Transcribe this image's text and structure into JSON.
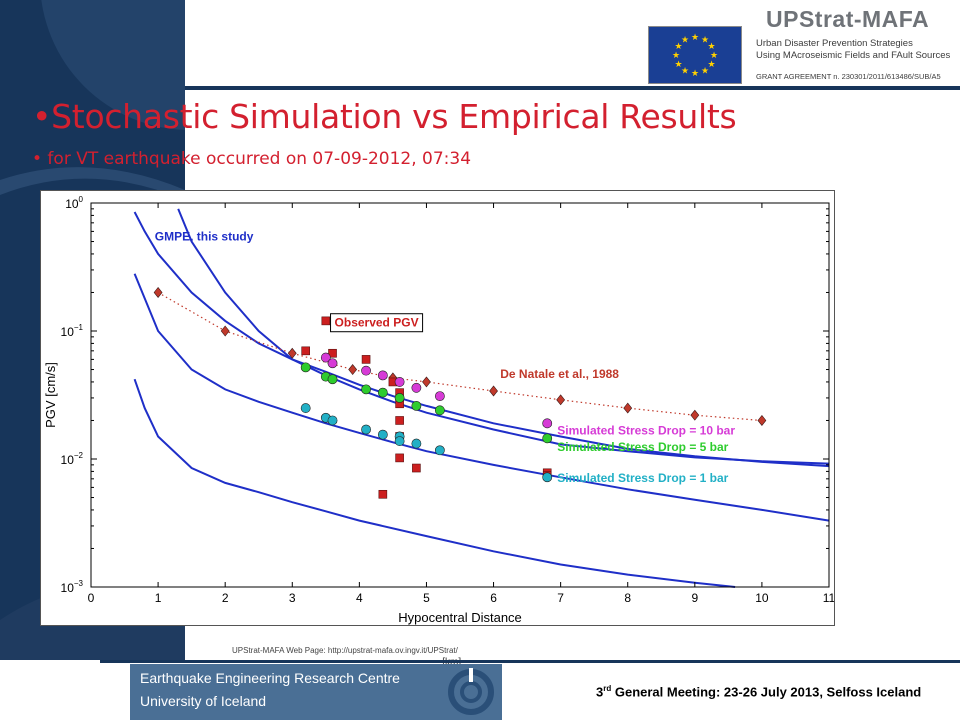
{
  "header": {
    "brand_title": "UPStrat-MAFA",
    "brand_line1": "Urban Disaster Prevention Strategies",
    "brand_line2": "Using MAcroseismic Fields and FAult Sources",
    "grant": "GRANT AGREEMENT n. 230301/2011/613486/SUB/A5"
  },
  "slide": {
    "title": "•Stochastic Simulation vs Empirical Results",
    "subtitle": "• for VT earthquake occurred on 07-09-2012, 07:34"
  },
  "footer": {
    "web": "UPStrat-MAFA Web Page: http://upstrat-mafa.ov.ingv.it/UPStrat/",
    "note": "• [km]",
    "centre": "Earthquake Engineering Research Centre",
    "university": "University of Iceland",
    "meeting_ordinal": "3",
    "meeting_sup": "rd",
    "meeting_rest": " General Meeting: 23-26 July 2013, Selfoss Iceland"
  },
  "colors": {
    "title_red": "#d3202f",
    "navy": "#17355a",
    "gmpe_blue": "#1f2fc8",
    "de_natale": "#c0392b",
    "observed": "#cc1f1f",
    "sim10": "#d63bd6",
    "sim5": "#2ecc2e",
    "sim1": "#22b0c6"
  },
  "chart_data": {
    "type": "scatter",
    "xlabel": "Hypocentral Distance",
    "ylabel": "PGV [cm/s]",
    "xlim": [
      0,
      11
    ],
    "ylim": [
      0.001,
      1
    ],
    "yscale": "log",
    "grid": false,
    "x_ticks": [
      "0",
      "1",
      "2",
      "3",
      "4",
      "5",
      "6",
      "7",
      "8",
      "9",
      "10",
      "11"
    ],
    "y_ticks": [
      {
        "value": 1,
        "base": "10",
        "exp": "0"
      },
      {
        "value": 0.1,
        "base": "10",
        "exp": "−1"
      },
      {
        "value": 0.01,
        "base": "10",
        "exp": "−2"
      },
      {
        "value": 0.001,
        "base": "10",
        "exp": "−3"
      }
    ],
    "annotations": {
      "gmpe": "GMPE, this study",
      "observed": "Observed PGV",
      "de_natale": "De Natale et al., 1988",
      "sim10": "Simulated Stress Drop = 10 bar",
      "sim5": "Simulated Stress Drop = 5 bar",
      "sim1": "Simulated Stress Drop = 1 bar"
    },
    "gmpe_curves": [
      {
        "points": [
          [
            0.65,
            0.85
          ],
          [
            0.8,
            0.6
          ],
          [
            1,
            0.4
          ],
          [
            1.5,
            0.2
          ],
          [
            2,
            0.12
          ],
          [
            2.5,
            0.08
          ],
          [
            3,
            0.06
          ],
          [
            3.5,
            0.048
          ],
          [
            4,
            0.038
          ],
          [
            4.5,
            0.031
          ],
          [
            5,
            0.026
          ],
          [
            6,
            0.019
          ],
          [
            7,
            0.015
          ],
          [
            8,
            0.012
          ],
          [
            9,
            0.0105
          ],
          [
            10,
            0.0095
          ],
          [
            11,
            0.0088
          ]
        ]
      },
      {
        "points": [
          [
            1.3,
            0.9
          ],
          [
            1.5,
            0.5
          ],
          [
            2,
            0.2
          ],
          [
            2.5,
            0.1
          ],
          [
            3,
            0.06
          ],
          [
            3.5,
            0.045
          ],
          [
            4,
            0.035
          ],
          [
            4.5,
            0.028
          ],
          [
            5,
            0.023
          ],
          [
            6,
            0.017
          ],
          [
            7,
            0.013
          ],
          [
            8,
            0.0115
          ],
          [
            9,
            0.0103
          ],
          [
            10,
            0.0096
          ],
          [
            11,
            0.0092
          ]
        ]
      },
      {
        "points": [
          [
            0.65,
            0.28
          ],
          [
            1,
            0.1
          ],
          [
            1.5,
            0.05
          ],
          [
            2,
            0.035
          ],
          [
            2.5,
            0.028
          ],
          [
            3,
            0.023
          ],
          [
            3.5,
            0.019
          ],
          [
            4,
            0.016
          ],
          [
            4.5,
            0.0135
          ],
          [
            5,
            0.0115
          ],
          [
            6,
            0.009
          ],
          [
            7,
            0.0072
          ],
          [
            8,
            0.0058
          ],
          [
            9,
            0.0048
          ],
          [
            10,
            0.004
          ],
          [
            11,
            0.0033
          ]
        ]
      },
      {
        "points": [
          [
            0.65,
            0.042
          ],
          [
            0.8,
            0.025
          ],
          [
            1,
            0.015
          ],
          [
            1.5,
            0.0085
          ],
          [
            2,
            0.0065
          ],
          [
            2.5,
            0.0055
          ],
          [
            3,
            0.0046
          ],
          [
            3.5,
            0.0039
          ],
          [
            4,
            0.0033
          ],
          [
            5,
            0.0025
          ],
          [
            6,
            0.0019
          ],
          [
            7,
            0.0015
          ],
          [
            8,
            0.00125
          ],
          [
            9,
            0.00108
          ],
          [
            9.6,
            0.001
          ]
        ]
      }
    ],
    "series": [
      {
        "name": "De Natale et al., 1988",
        "marker": "diamond",
        "line": "dotted",
        "points": [
          [
            1,
            0.2
          ],
          [
            2,
            0.1
          ],
          [
            3,
            0.067
          ],
          [
            3.9,
            0.05
          ],
          [
            4.5,
            0.043
          ],
          [
            5,
            0.04
          ],
          [
            6,
            0.034
          ],
          [
            7,
            0.029
          ],
          [
            8,
            0.025
          ],
          [
            9,
            0.022
          ],
          [
            10,
            0.02
          ]
        ]
      },
      {
        "name": "Observed PGV",
        "marker": "square",
        "points": [
          [
            3.5,
            0.12
          ],
          [
            3.2,
            0.07
          ],
          [
            3.6,
            0.067
          ],
          [
            4.1,
            0.06
          ],
          [
            4.5,
            0.04
          ],
          [
            4.6,
            0.033
          ],
          [
            4.6,
            0.027
          ],
          [
            4.6,
            0.02
          ],
          [
            4.6,
            0.015
          ],
          [
            4.6,
            0.0102
          ],
          [
            4.85,
            0.0085
          ],
          [
            4.35,
            0.0053
          ],
          [
            6.8,
            0.0078
          ],
          [
            6.8,
            0.0074
          ]
        ]
      },
      {
        "name": "Simulated Stress Drop = 10 bar",
        "marker": "circle",
        "points": [
          [
            3.5,
            0.062
          ],
          [
            3.6,
            0.056
          ],
          [
            4.1,
            0.049
          ],
          [
            4.35,
            0.045
          ],
          [
            4.6,
            0.04
          ],
          [
            4.85,
            0.036
          ],
          [
            5.2,
            0.031
          ],
          [
            6.8,
            0.019
          ]
        ]
      },
      {
        "name": "Simulated Stress Drop = 5 bar",
        "marker": "circle",
        "points": [
          [
            3.2,
            0.052
          ],
          [
            3.5,
            0.044
          ],
          [
            3.6,
            0.042
          ],
          [
            4.1,
            0.035
          ],
          [
            4.35,
            0.033
          ],
          [
            4.6,
            0.03
          ],
          [
            4.85,
            0.026
          ],
          [
            5.2,
            0.024
          ],
          [
            6.8,
            0.0145
          ]
        ]
      },
      {
        "name": "Simulated Stress Drop = 1 bar",
        "marker": "circle",
        "points": [
          [
            3.2,
            0.025
          ],
          [
            3.5,
            0.021
          ],
          [
            3.6,
            0.02
          ],
          [
            4.1,
            0.017
          ],
          [
            4.35,
            0.0155
          ],
          [
            4.6,
            0.015
          ],
          [
            4.6,
            0.0138
          ],
          [
            4.85,
            0.0132
          ],
          [
            5.2,
            0.0117
          ],
          [
            6.8,
            0.0072
          ]
        ]
      }
    ]
  }
}
